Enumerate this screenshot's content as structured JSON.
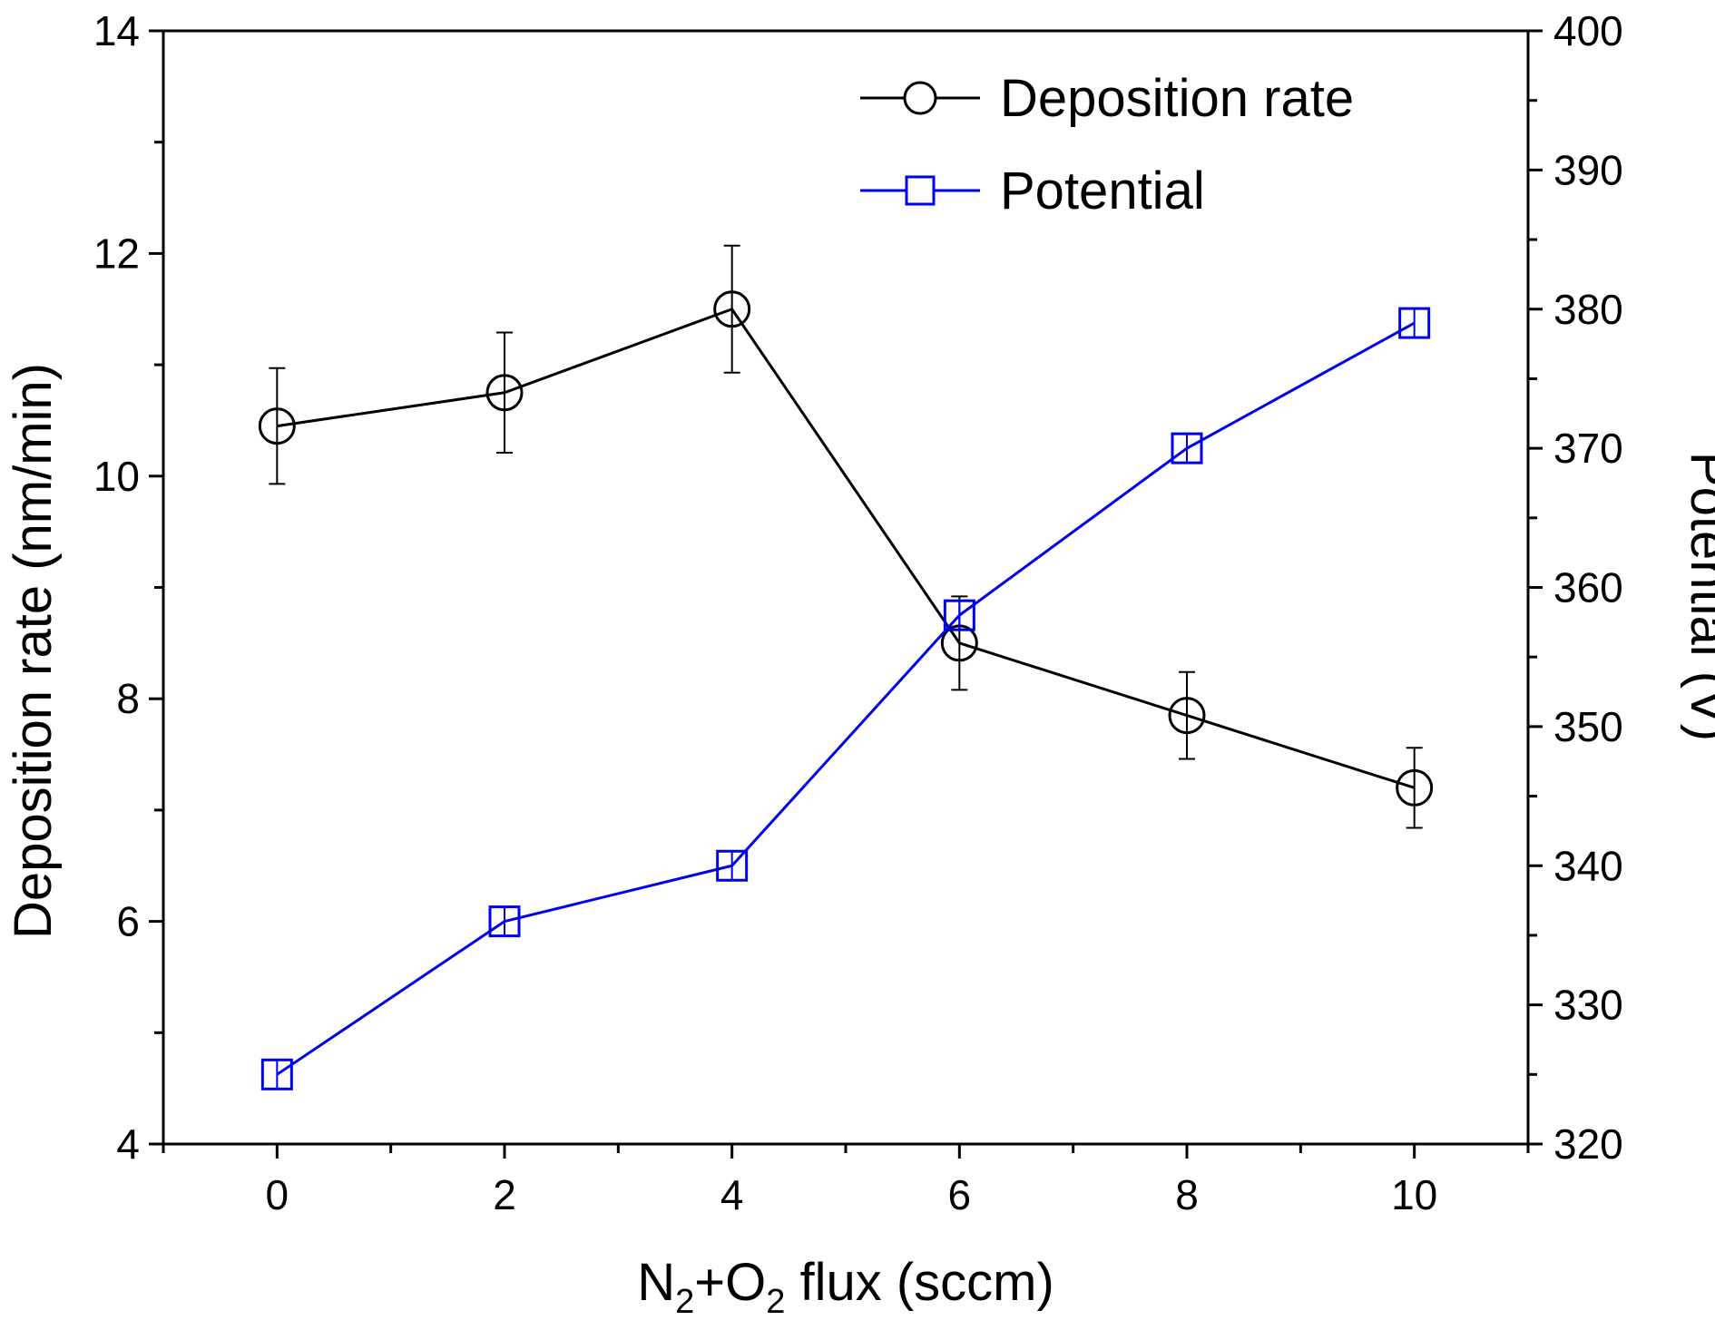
{
  "chart_data": {
    "type": "line",
    "title": "",
    "xlabel": "N2+O2 flux (sccm)",
    "xlabel_parts": [
      "N",
      "2",
      "+O",
      "2",
      " flux (sccm)"
    ],
    "ylabel_left": "Deposition rate (nm/min)",
    "ylabel_right": "Potential (V)",
    "xlim": [
      -1,
      11
    ],
    "ylim_left": [
      4,
      14
    ],
    "ylim_right": [
      320,
      400
    ],
    "x_ticks": [
      0,
      2,
      4,
      6,
      8,
      10
    ],
    "y_left_ticks": [
      4,
      6,
      8,
      10,
      12,
      14
    ],
    "y_right_ticks": [
      320,
      330,
      340,
      350,
      360,
      370,
      380,
      390,
      400
    ],
    "legend_position": "top-right",
    "series": [
      {
        "name": "Deposition rate",
        "axis": "left",
        "color": "#000000",
        "marker": "circle",
        "x": [
          0,
          2,
          4,
          6,
          8,
          10
        ],
        "values": [
          10.45,
          10.75,
          11.5,
          8.5,
          7.85,
          7.2
        ],
        "errors": [
          0.52,
          0.54,
          0.57,
          0.42,
          0.39,
          0.36
        ]
      },
      {
        "name": "Potential",
        "axis": "right",
        "color": "#0000ee",
        "marker": "square",
        "x": [
          0,
          2,
          4,
          6,
          8,
          10
        ],
        "values": [
          325,
          336,
          340,
          358,
          370,
          379
        ]
      }
    ]
  }
}
